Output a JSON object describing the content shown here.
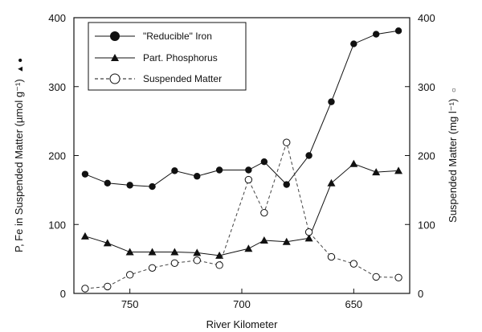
{
  "chart_data": {
    "type": "line",
    "xlabel": "River Kilometer",
    "ylabel_left": "P, Fe in Suspended Matter (µmol g⁻¹)",
    "ylabel_left_markers": "▲ ●",
    "ylabel_right": "Suspended Matter (mg l⁻¹)",
    "ylabel_right_marker": "○",
    "x_reversed": true,
    "xlim": [
      775,
      625
    ],
    "x_ticks": [
      750,
      700,
      650
    ],
    "ylim_left": [
      0,
      400
    ],
    "y_ticks_left": [
      0,
      100,
      200,
      300,
      400
    ],
    "ylim_right": [
      0,
      400
    ],
    "y_ticks_right": [
      0,
      100,
      200,
      300,
      400
    ],
    "legend_position": "top-left",
    "series": [
      {
        "name": "\"Reducible\" Iron",
        "axis": "left",
        "marker": "filled-circle",
        "line": "solid",
        "x": [
          770,
          760,
          750,
          740,
          730,
          720,
          710,
          697,
          690,
          680,
          670,
          660,
          650,
          640,
          630
        ],
        "y": [
          173,
          160,
          157,
          155,
          178,
          170,
          179,
          179,
          191,
          158,
          200,
          278,
          362,
          376,
          381
        ]
      },
      {
        "name": "Part. Phosphorus",
        "axis": "left",
        "marker": "filled-triangle",
        "line": "solid",
        "x": [
          770,
          760,
          750,
          740,
          730,
          720,
          710,
          697,
          690,
          680,
          670,
          660,
          650,
          640,
          630
        ],
        "y": [
          83,
          73,
          60,
          60,
          60,
          59,
          55,
          65,
          77,
          75,
          80,
          160,
          188,
          176,
          178
        ]
      },
      {
        "name": "Suspended Matter",
        "axis": "right",
        "marker": "open-circle",
        "line": "dashed",
        "x": [
          770,
          760,
          750,
          740,
          730,
          720,
          710,
          697,
          690,
          680,
          670,
          660,
          650,
          640,
          630
        ],
        "y": [
          7,
          10,
          27,
          37,
          44,
          48,
          41,
          165,
          117,
          219,
          89,
          53,
          43,
          24,
          23
        ]
      }
    ]
  }
}
